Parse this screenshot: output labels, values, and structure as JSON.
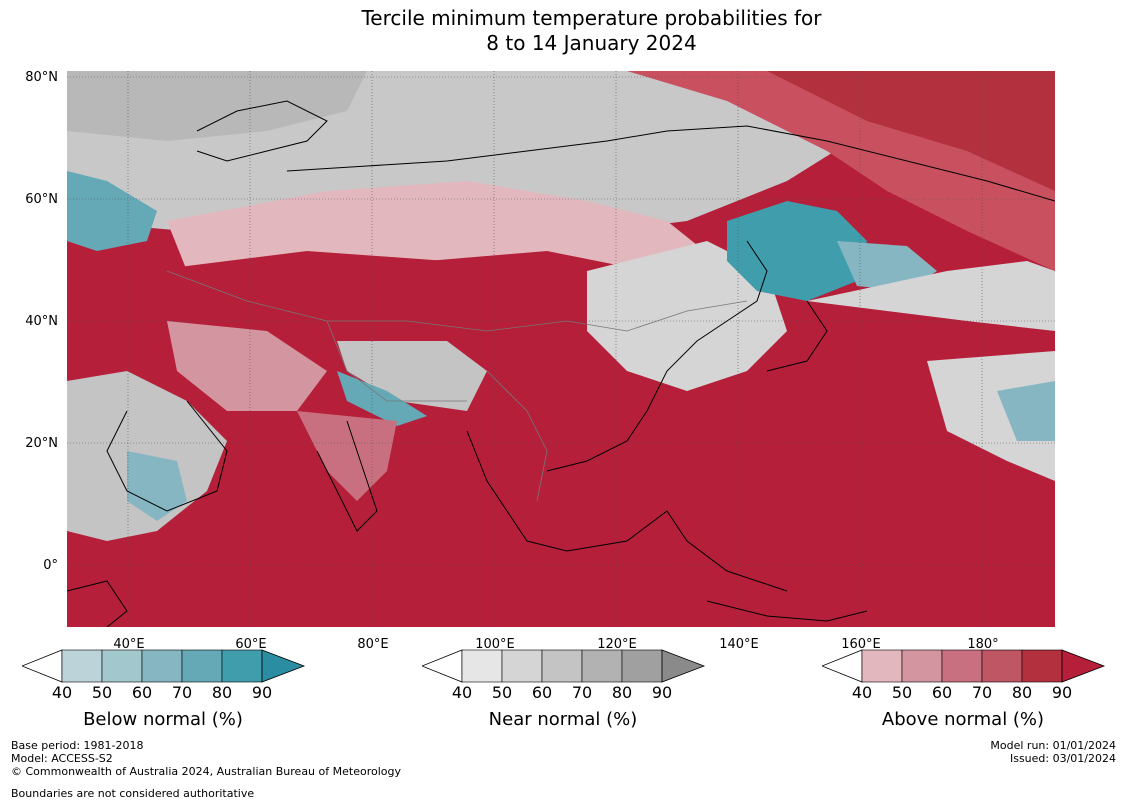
{
  "title": {
    "line1": "Tercile minimum temperature probabilities for",
    "line2": "8 to 14 January 2024"
  },
  "map": {
    "lat_labels": [
      "80°N",
      "60°N",
      "40°N",
      "20°N",
      "0°"
    ],
    "lon_labels": [
      "40°E",
      "60°E",
      "80°E",
      "100°E",
      "120°E",
      "140°E",
      "160°E",
      "180°"
    ],
    "region": "Asia"
  },
  "colorbars": [
    {
      "title": "Below normal (%)",
      "ticks": [
        "40",
        "50",
        "60",
        "70",
        "80",
        "90"
      ],
      "colors": [
        "#bcd3d9",
        "#a2c7cd",
        "#86b6c2",
        "#65a9b6",
        "#3f9dac",
        "#2a8da1"
      ]
    },
    {
      "title": "Near normal (%)",
      "ticks": [
        "40",
        "50",
        "60",
        "70",
        "80",
        "90"
      ],
      "colors": [
        "#e6e6e6",
        "#d5d5d5",
        "#c4c4c4",
        "#b2b2b2",
        "#a0a0a0",
        "#8a8a8a"
      ]
    },
    {
      "title": "Above normal (%)",
      "ticks": [
        "40",
        "50",
        "60",
        "70",
        "80",
        "90"
      ],
      "colors": [
        "#e2b8be",
        "#d3959f",
        "#c8707f",
        "#be5664",
        "#b3303f",
        "#b51f3a"
      ]
    }
  ],
  "footer": {
    "base_period": "Base period: 1981-2018",
    "model": "Model: ACCESS-S2",
    "copyright": "© Commonwealth of Australia 2024, Australian Bureau of Meteorology",
    "boundaries": "Boundaries are not considered authoritative",
    "model_run": "Model run: 01/01/2024",
    "issued": "Issued: 03/01/2024"
  }
}
